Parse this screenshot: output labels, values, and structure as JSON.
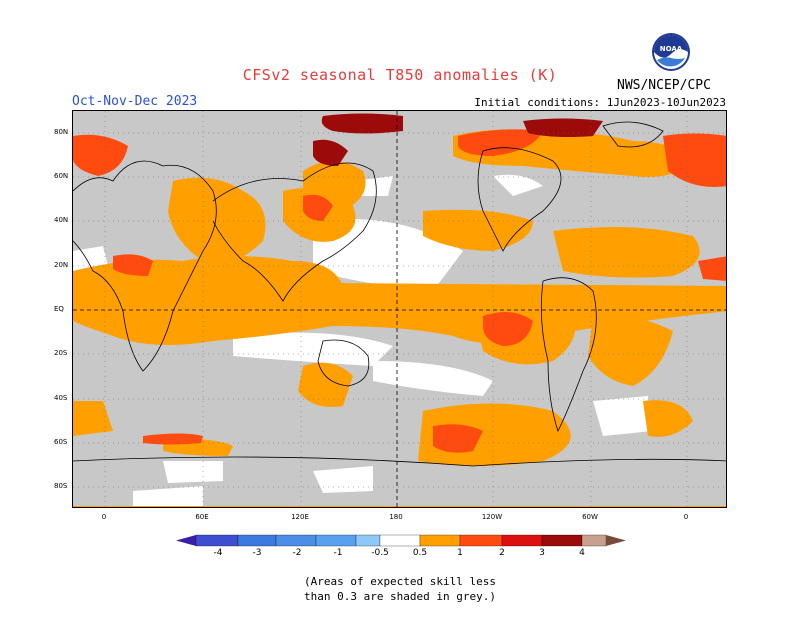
{
  "title": "CFSv2 seasonal T850 anomalies (K)",
  "season": "Oct-Nov-Dec 2023",
  "initial_conditions": "Initial conditions: 1Jun2023-10Jun2023",
  "organization": "NWS/NCEP/CPC",
  "logo_text": "NOAA",
  "lat_labels": [
    "80N",
    "60N",
    "40N",
    "20N",
    "EQ",
    "20S",
    "40S",
    "60S",
    "80S"
  ],
  "lon_labels": [
    "0",
    "60E",
    "120E",
    "180",
    "120W",
    "60W",
    "0"
  ],
  "colorbar": {
    "labels": [
      "-4",
      "-3",
      "-2",
      "-1",
      "-0.5",
      "0.5",
      "1",
      "2",
      "3",
      "4"
    ],
    "colors": [
      "#3a1fa8",
      "#3d4fd0",
      "#3d7ae0",
      "#5aa0f0",
      "#8ec8f8",
      "#ffffff",
      "#ffa000",
      "#ff4a10",
      "#dd1010",
      "#9c0a0a",
      "#c8a090",
      "#7a4a3a"
    ]
  },
  "note_line1": "(Areas of expected skill less",
  "note_line2": "than 0.3 are shaded in grey.)"
}
